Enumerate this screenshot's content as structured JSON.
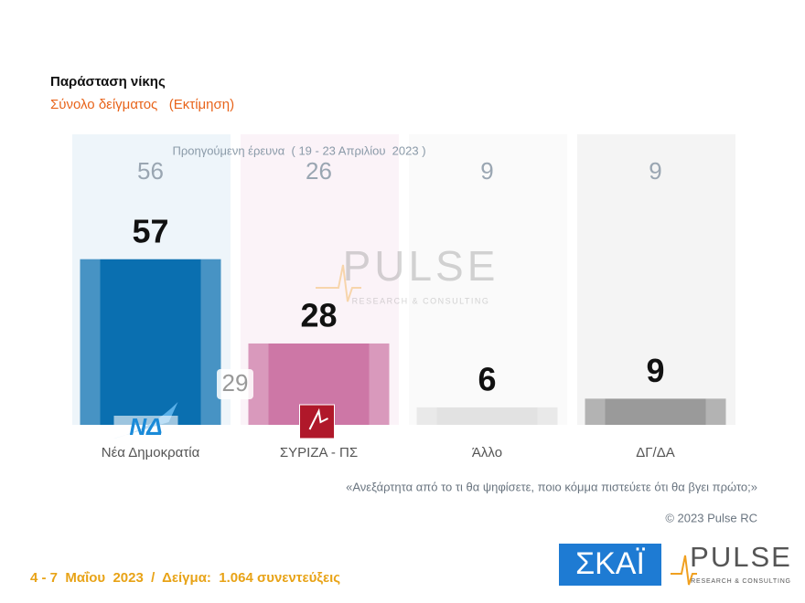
{
  "chart_data": {
    "type": "bar",
    "title": "Παράσταση νίκης",
    "subtitle": "Σύνολο δείγματος   (Εκτίμηση)",
    "categories": [
      "Νέα Δημοκρατία",
      "ΣΥΡΙΖΑ - ΠΣ",
      "Άλλο",
      "ΔΓ/ΔΑ"
    ],
    "values": [
      57,
      28,
      6,
      9
    ],
    "colors": [
      "#0a6fb0",
      "#cd77a6",
      "#e2e2e2",
      "#9a9a9a"
    ],
    "panel_colors": [
      "#eef5fa",
      "#fbf3f8",
      "#fafafa",
      "#f4f4f4"
    ],
    "ylim": [
      0,
      100
    ],
    "previous": {
      "label": "Προηγούμενη έρευνα  ( 19 - 23 Απριλίου  2023 )",
      "values": [
        56,
        26,
        9,
        9
      ]
    },
    "gap_annotation": 29,
    "party_logo_text": "ΝΔ",
    "question": "«Ανεξάρτητα από το τι θα ψηφίσετε, ποιο κόμμα πιστεύετε ότι θα βγει πρώτο;»",
    "copyright": "© 2023 Pulse RC",
    "footer": "4 - 7  Μαΐου  2023  /  Δείγμα:  1.064 συνεντεύξεις",
    "logos": {
      "skai": "ΣΚΑΪ",
      "pulse": "PULSE",
      "pulse_sub": "RESEARCH & CONSULTING"
    }
  }
}
